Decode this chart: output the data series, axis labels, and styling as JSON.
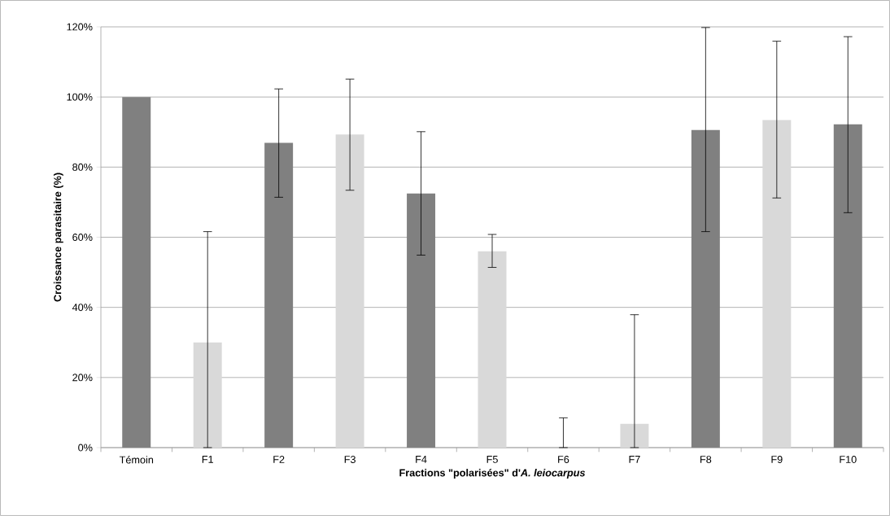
{
  "chart_data": {
    "type": "bar",
    "xlabel": "Fractions \"polarisées\" d'*A. leiocarpus*",
    "ylabel": "Croissance parasitaire (%)",
    "categories": [
      "Témoin",
      "F1",
      "F2",
      "F3",
      "F4",
      "F5",
      "F6",
      "F7",
      "F8",
      "F9",
      "F10"
    ],
    "values": [
      100,
      30,
      86.9,
      89.3,
      72.5,
      56,
      0,
      6.8,
      90.6,
      93.4,
      92.2
    ],
    "colors": [
      "#808080",
      "#d9d9d9",
      "#808080",
      "#d9d9d9",
      "#808080",
      "#d9d9d9",
      "#808080",
      "#d9d9d9",
      "#808080",
      "#d9d9d9",
      "#808080"
    ],
    "errors": [
      null,
      [
        0,
        61.6
      ],
      [
        71.4,
        102.3
      ],
      [
        73.4,
        105.1
      ],
      [
        54.9,
        90.1
      ],
      [
        51.4,
        60.8
      ],
      [
        0,
        8.5
      ],
      [
        0,
        37.9
      ],
      [
        61.6,
        119.8
      ],
      [
        71.2,
        115.9
      ],
      [
        67.0,
        117.2
      ]
    ],
    "ylim": [
      0,
      120
    ],
    "yticks": [
      {
        "value": 0,
        "label": "0%"
      },
      {
        "value": 20,
        "label": "20%"
      },
      {
        "value": 40,
        "label": "40%"
      },
      {
        "value": 60,
        "label": "60%"
      },
      {
        "value": 80,
        "label": "80%"
      },
      {
        "value": 100,
        "label": "100%"
      },
      {
        "value": 120,
        "label": "120%"
      }
    ],
    "grid": "y"
  }
}
